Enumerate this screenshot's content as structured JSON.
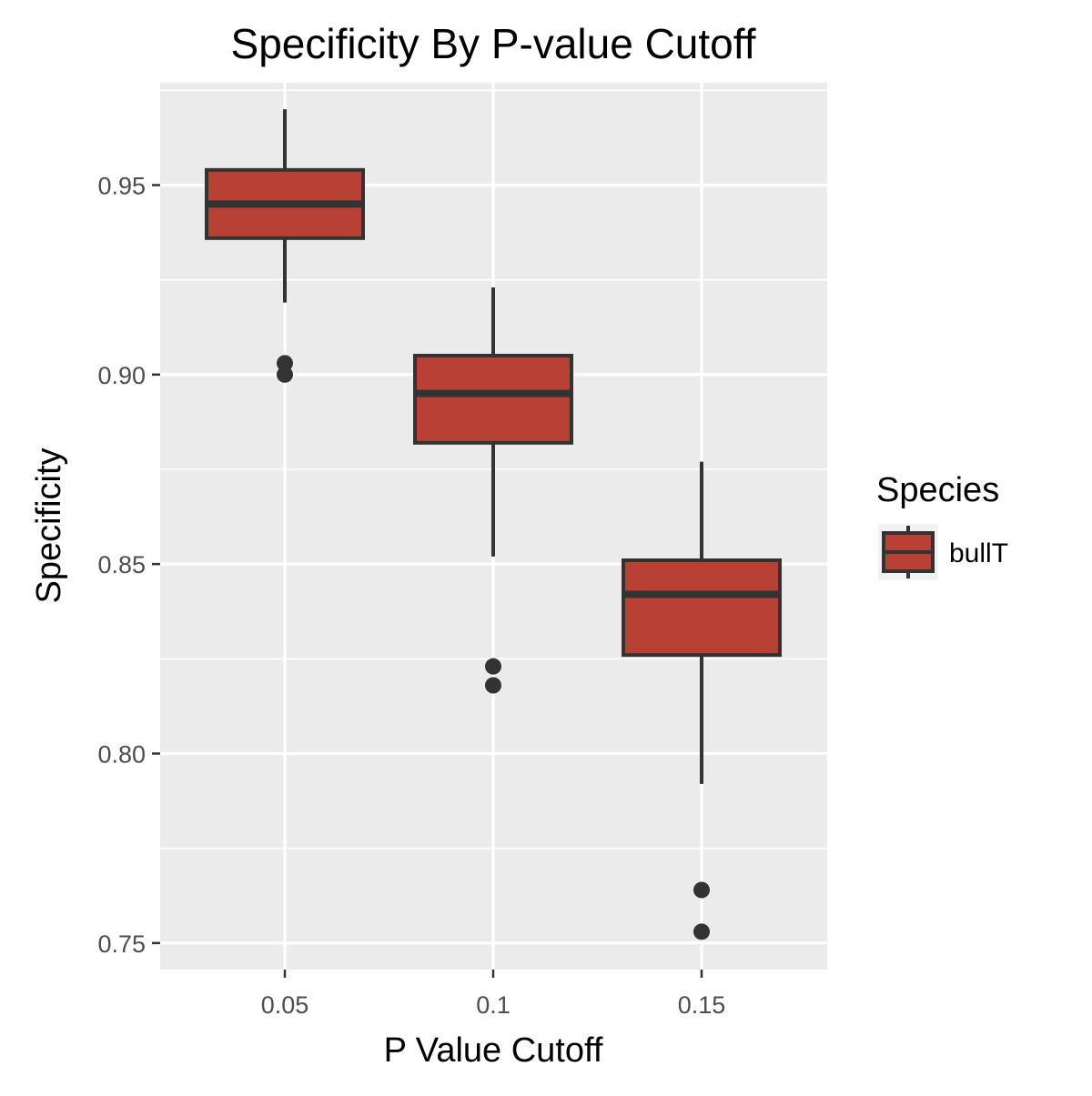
{
  "chart_data": {
    "type": "boxplot",
    "title": "Specificity By P-value Cutoff",
    "xlabel": "P Value Cutoff",
    "ylabel": "Specificity",
    "categories": [
      "0.05",
      "0.1",
      "0.15"
    ],
    "ylim": [
      0.743,
      0.977
    ],
    "yticks": [
      0.75,
      0.8,
      0.85,
      0.9,
      0.95
    ],
    "ytick_labels": [
      "0.75",
      "0.80",
      "0.85",
      "0.90",
      "0.95"
    ],
    "grid": true,
    "legend": {
      "title": "Species",
      "position": "right",
      "entries": [
        "bullT"
      ]
    },
    "series": [
      {
        "name": "bullT",
        "color": "#b94034",
        "boxes": [
          {
            "category": "0.05",
            "whisker_low": 0.919,
            "q1": 0.936,
            "median": 0.945,
            "q3": 0.954,
            "whisker_high": 0.97,
            "outliers": [
              0.903,
              0.9
            ]
          },
          {
            "category": "0.1",
            "whisker_low": 0.852,
            "q1": 0.882,
            "median": 0.895,
            "q3": 0.905,
            "whisker_high": 0.923,
            "outliers": [
              0.823,
              0.818
            ]
          },
          {
            "category": "0.15",
            "whisker_low": 0.792,
            "q1": 0.826,
            "median": 0.842,
            "q3": 0.851,
            "whisker_high": 0.877,
            "outliers": [
              0.764,
              0.753
            ]
          }
        ]
      }
    ],
    "colors": {
      "panel_background": "#ebebeb",
      "grid": "#ffffff",
      "box_fill": "#b94034",
      "box_outline": "#333333",
      "outlier": "#333333",
      "tick_text": "#4d4d4d"
    }
  }
}
